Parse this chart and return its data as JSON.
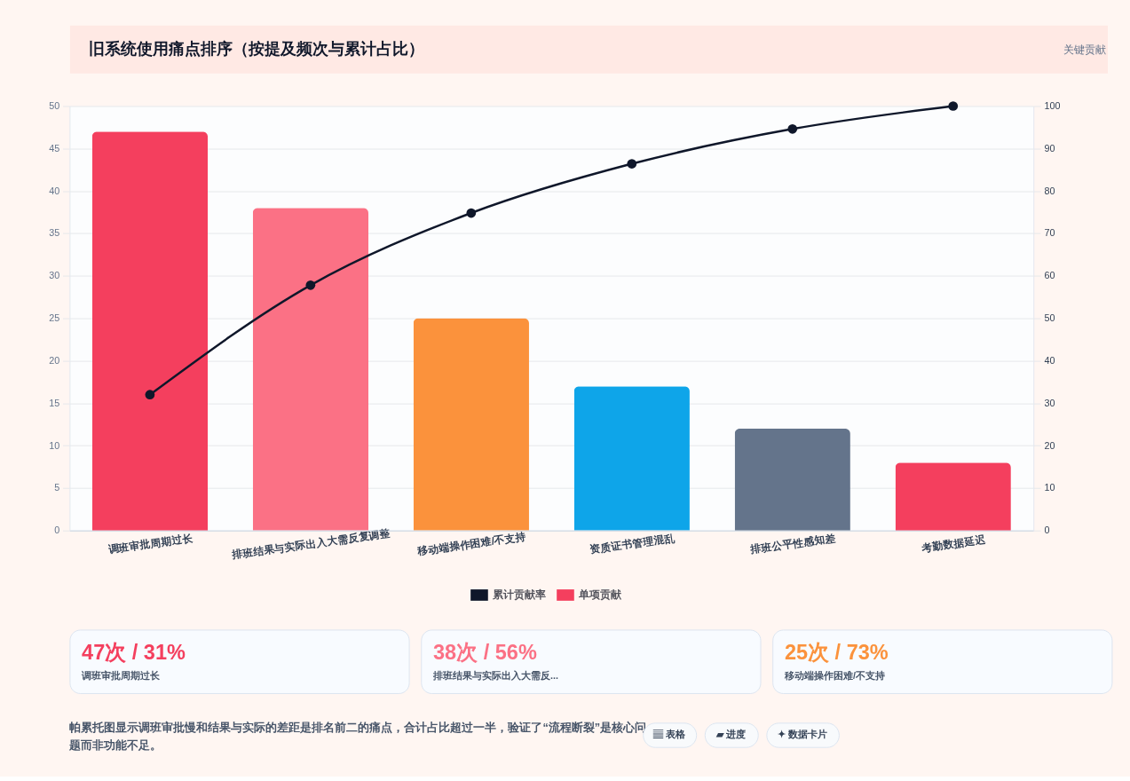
{
  "chart_data": {
    "type": "bar",
    "title": "旧系统使用痛点排序（按提及频次与累计占比）",
    "categories": [
      "调班审批周期过长",
      "排班结果与实际出入大需反复调整",
      "移动端操作困难/不支持",
      "资质证书管理混乱",
      "排班公平性感知差",
      "考勤数据延迟"
    ],
    "series": [
      {
        "name": "累计贡献率",
        "type": "line",
        "axis": "y2",
        "color": "#0f172a",
        "values": [
          32,
          57.8,
          74.8,
          86.4,
          94.6,
          100
        ]
      },
      {
        "name": "单项贡献",
        "colors": [
          "#f43f5e",
          "#fb7185",
          "#fb923c",
          "#0ea5e9",
          "#64748b",
          "#f43f5e"
        ],
        "values": [
          47,
          38,
          25,
          17,
          12,
          8
        ]
      }
    ],
    "ylim": [
      0,
      50
    ],
    "yticks": [
      0,
      5,
      10,
      15,
      20,
      25,
      30,
      35,
      40,
      45,
      50
    ],
    "y2lim": [
      0,
      100
    ],
    "y2ticks": [
      0,
      10,
      20,
      30,
      40,
      50,
      60,
      70,
      80,
      90,
      100
    ],
    "grid": "y",
    "legend": "bottom",
    "marker": "circle",
    "line_style": "solid",
    "annotations": [
      "关键贡献",
      "47次 / 31%",
      "调班审批周期过长",
      "38次 / 56%",
      "排班结果与实际出入大需反...",
      "25次 / 73%",
      "移动端操作困难/不支持",
      "帕累托图显示调班审批慢和结果与实际的差距是排名前二的痛点，合计占比超过一半，验证了“流程断裂”是核心问题而非功能不足。",
      "▤ 表格",
      "▰ 进度",
      "✦ 数据卡片"
    ]
  }
}
